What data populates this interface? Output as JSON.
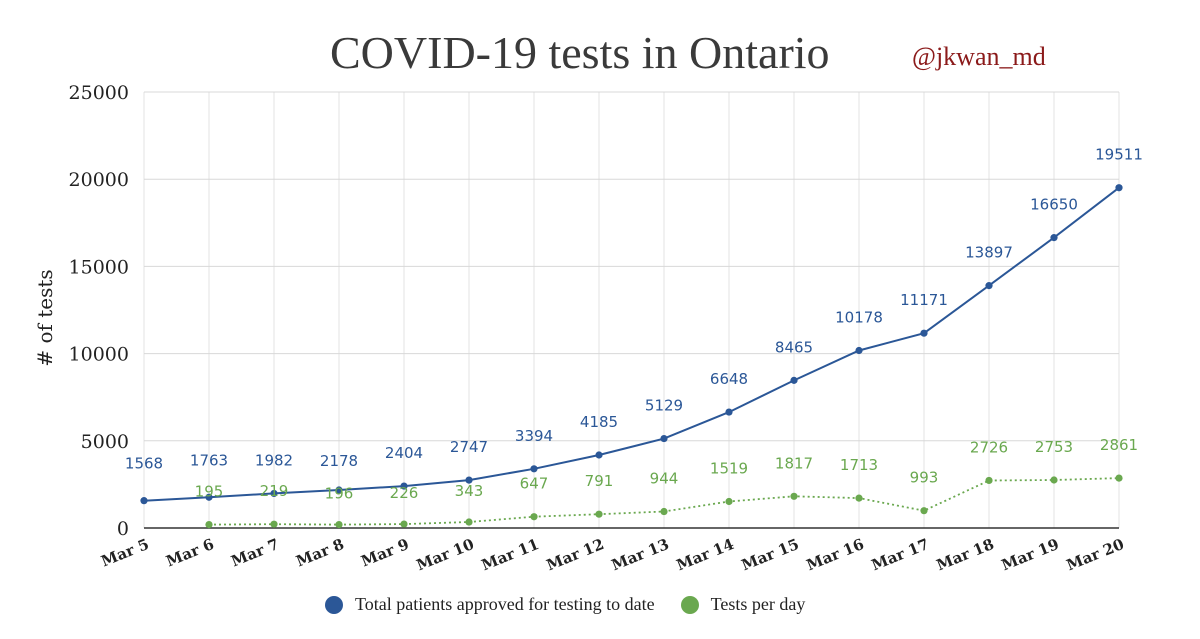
{
  "chart_data": {
    "type": "line",
    "title": "COVID-19 tests in Ontario",
    "handle": "@jkwan_md",
    "ylabel": "# of tests",
    "xlabel": "",
    "ylim": [
      0,
      25000
    ],
    "yticks": [
      0,
      5000,
      10000,
      15000,
      20000,
      25000
    ],
    "grid": true,
    "legend_position": "bottom",
    "categories": [
      "Mar 5",
      "Mar 6",
      "Mar 7",
      "Mar 8",
      "Mar 9",
      "Mar 10",
      "Mar 11",
      "Mar 12",
      "Mar 13",
      "Mar 14",
      "Mar 15",
      "Mar 16",
      "Mar 17",
      "Mar 18",
      "Mar 19",
      "Mar 20"
    ],
    "series": [
      {
        "name": "Total patients approved for testing to date",
        "color": "#2b5797",
        "line_style": "solid",
        "values": [
          1568,
          1763,
          1982,
          2178,
          2404,
          2747,
          3394,
          4185,
          5129,
          6648,
          8465,
          10178,
          11171,
          13897,
          16650,
          19511
        ]
      },
      {
        "name": "Tests per day",
        "color": "#6aa84f",
        "line_style": "dotted",
        "values": [
          null,
          195,
          219,
          196,
          226,
          343,
          647,
          791,
          944,
          1519,
          1817,
          1713,
          993,
          2726,
          2753,
          2861
        ]
      }
    ]
  }
}
